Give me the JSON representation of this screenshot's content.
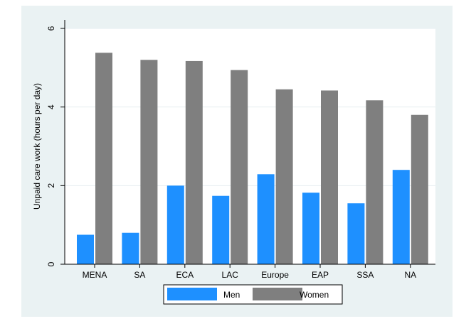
{
  "chart_data": {
    "type": "bar",
    "title": "",
    "xlabel": "",
    "ylabel": "Unpaid care work (hours per day)",
    "ylim": [
      0,
      6
    ],
    "yticks": [
      0,
      2,
      4,
      6
    ],
    "grid": true,
    "legend_position": "bottom",
    "categories": [
      "MENA",
      "SA",
      "ECA",
      "LAC",
      "Europe",
      "EAP",
      "SSA",
      "NA"
    ],
    "series": [
      {
        "name": "Men",
        "color": "#1e90ff",
        "values": [
          0.75,
          0.8,
          2.0,
          1.74,
          2.29,
          1.82,
          1.55,
          2.4
        ]
      },
      {
        "name": "Women",
        "color": "#7f7f7f",
        "values": [
          5.38,
          5.2,
          5.17,
          4.94,
          4.45,
          4.42,
          4.17,
          3.8
        ]
      }
    ]
  }
}
